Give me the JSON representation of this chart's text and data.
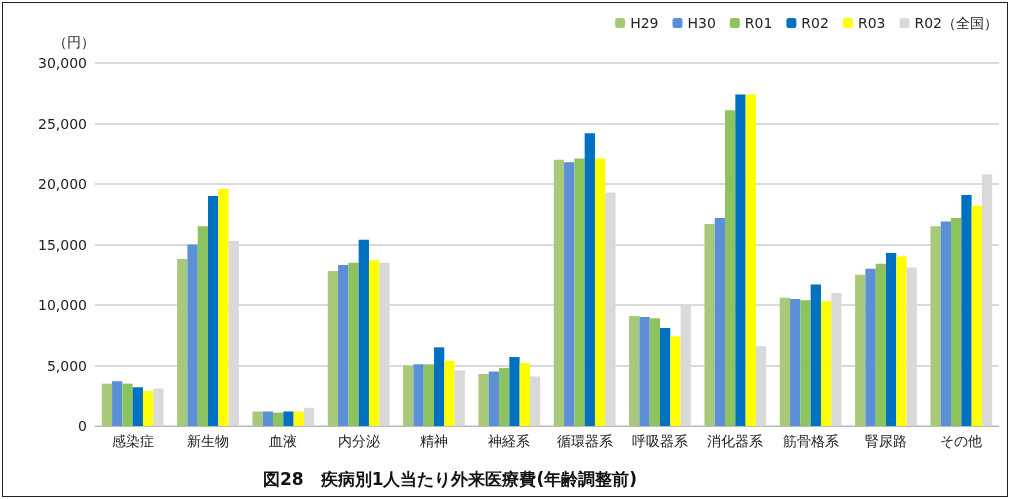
{
  "chart_data": {
    "type": "bar",
    "title": "図28　疾病別1人当たり外来医療費(年齢調整前)",
    "ylabel": "（円）",
    "categories": [
      "感染症",
      "新生物",
      "血液",
      "内分泌",
      "精神",
      "神経系",
      "循環器系",
      "呼吸器系",
      "消化器系",
      "筋骨格系",
      "腎尿路",
      "その他"
    ],
    "series": [
      {
        "name": "H29",
        "color": "#a9c97a",
        "values": [
          3500,
          13800,
          1200,
          12800,
          5000,
          4300,
          22000,
          9100,
          16700,
          10600,
          12500,
          16500
        ]
      },
      {
        "name": "H30",
        "color": "#5b8fd6",
        "values": [
          3700,
          15000,
          1200,
          13300,
          5100,
          4500,
          21800,
          9000,
          17200,
          10500,
          13000,
          16900
        ]
      },
      {
        "name": "R01",
        "color": "#8dc35e",
        "values": [
          3500,
          16500,
          1100,
          13500,
          5100,
          4800,
          22100,
          8900,
          26100,
          10400,
          13400,
          17200
        ]
      },
      {
        "name": "R02",
        "color": "#0070c0",
        "values": [
          3200,
          19000,
          1200,
          15400,
          6500,
          5700,
          24200,
          8100,
          27400,
          11700,
          14300,
          19100
        ]
      },
      {
        "name": "R03",
        "color": "#ffff00",
        "values": [
          2900,
          19600,
          1200,
          13700,
          5400,
          5200,
          22100,
          7400,
          27400,
          10300,
          14000,
          18200
        ]
      },
      {
        "name": "R02（全国）",
        "color": "#d9d9d9",
        "values": [
          3100,
          15300,
          1500,
          13500,
          4600,
          4100,
          19300,
          10000,
          6600,
          11000,
          13100,
          20800
        ]
      }
    ],
    "ylim": [
      0,
      30000
    ],
    "yticks": [
      0,
      {
        "value": 5000,
        "label": "5,000"
      },
      {
        "value": 10000,
        "label": "10,000"
      },
      {
        "value": 15000,
        "label": "15,000"
      },
      {
        "value": 20000,
        "label": "20,000"
      },
      {
        "value": 25000,
        "label": "25,000"
      },
      {
        "value": 30000,
        "label": "30,000"
      }
    ],
    "grid": "y",
    "legend": "top right"
  }
}
